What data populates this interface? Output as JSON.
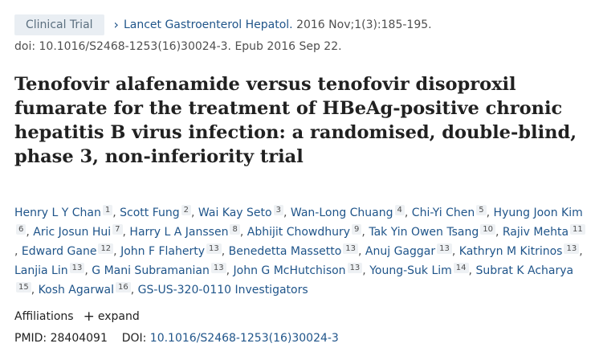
{
  "header": {
    "badge": "Clinical Trial",
    "journal": "Lancet Gastroenterol Hepatol.",
    "citation": "2016 Nov;1(3):185-195.",
    "doi_line": "doi: 10.1016/S2468-1253(16)30024-3. Epub 2016 Sep 22."
  },
  "title": "Tenofovir alafenamide versus tenofovir disoproxil fumarate for the treatment of HBeAg-positive chronic hepatitis B virus infection: a randomised, double-blind, phase 3, non-inferiority trial",
  "authors": [
    {
      "name": "Henry L Y Chan",
      "aff": "1"
    },
    {
      "name": "Scott Fung",
      "aff": "2"
    },
    {
      "name": "Wai Kay Seto",
      "aff": "3"
    },
    {
      "name": "Wan-Long Chuang",
      "aff": "4"
    },
    {
      "name": "Chi-Yi Chen",
      "aff": "5"
    },
    {
      "name": "Hyung Joon Kim",
      "aff": "6"
    },
    {
      "name": "Aric Josun Hui",
      "aff": "7"
    },
    {
      "name": "Harry L A Janssen",
      "aff": "8"
    },
    {
      "name": "Abhijit Chowdhury",
      "aff": "9"
    },
    {
      "name": "Tak Yin Owen Tsang",
      "aff": "10"
    },
    {
      "name": "Rajiv Mehta",
      "aff": "11"
    },
    {
      "name": "Edward Gane",
      "aff": "12"
    },
    {
      "name": "John F Flaherty",
      "aff": "13"
    },
    {
      "name": "Benedetta Massetto",
      "aff": "13"
    },
    {
      "name": "Anuj Gaggar",
      "aff": "13"
    },
    {
      "name": "Kathryn M Kitrinos",
      "aff": "13"
    },
    {
      "name": "Lanjia Lin",
      "aff": "13"
    },
    {
      "name": "G Mani Subramanian",
      "aff": "13"
    },
    {
      "name": "John G McHutchison",
      "aff": "13"
    },
    {
      "name": "Young-Suk Lim",
      "aff": "14"
    },
    {
      "name": "Subrat K Acharya",
      "aff": "15"
    },
    {
      "name": "Kosh Agarwal",
      "aff": "16"
    }
  ],
  "group_author": "GS-US-320-0110 Investigators",
  "affiliations": {
    "label": "Affiliations",
    "expand_icon": "plus-icon",
    "expand_label": "expand"
  },
  "identifiers": {
    "pmid_label": "PMID:",
    "pmid": "28404091",
    "doi_label": "DOI:",
    "doi": "10.1016/S2468-1253(16)30024-3"
  },
  "colors": {
    "link": "#20558a",
    "badge_bg": "#e9eef3",
    "badge_text": "#5b6f7f"
  }
}
